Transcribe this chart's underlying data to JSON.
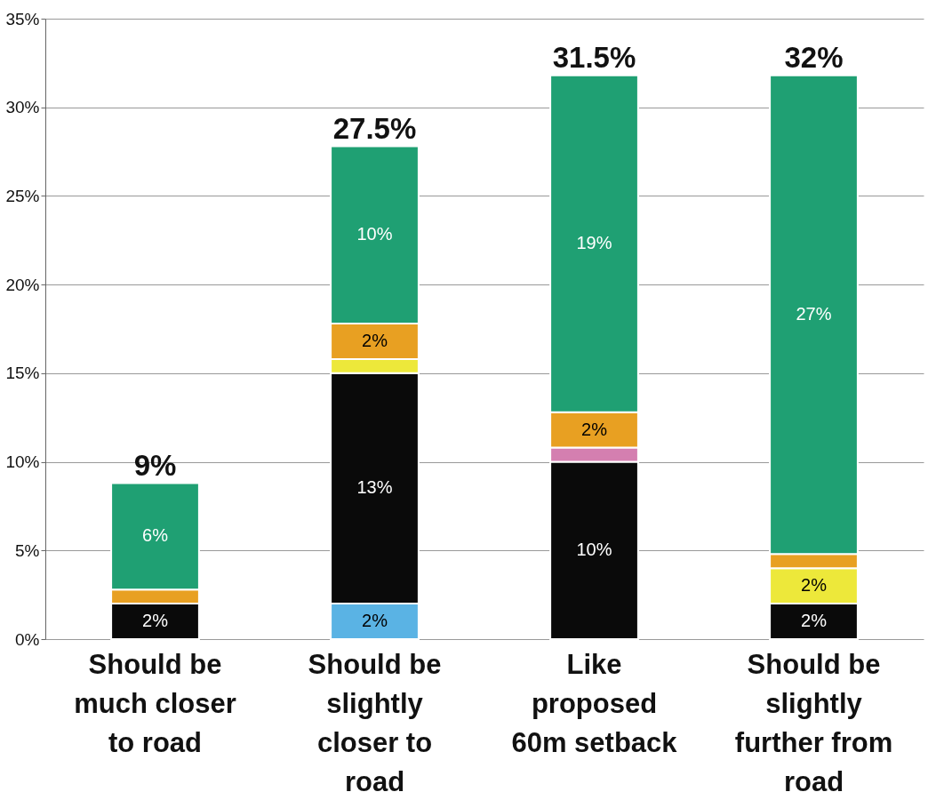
{
  "chart_data": {
    "type": "bar",
    "stacked": true,
    "categories": [
      "Should be much closer to road",
      "Should be slightly closer to road",
      "Like proposed 60m setback",
      "Should be slightly further from road"
    ],
    "series": [
      {
        "color": "#5ab3e4",
        "values": [
          null,
          2,
          null,
          null
        ],
        "value_labels": [
          null,
          "2%",
          null,
          null
        ]
      },
      {
        "color": "#0a0a0a",
        "values": [
          2,
          13,
          10,
          2
        ],
        "value_labels": [
          "2%",
          "13%",
          "10%",
          "2%"
        ]
      },
      {
        "color": "#ede83a",
        "values": [
          null,
          0.8,
          null,
          2
        ],
        "value_labels": [
          null,
          null,
          null,
          "2%"
        ]
      },
      {
        "color": "#d47fb0",
        "values": [
          null,
          null,
          0.8,
          null
        ],
        "value_labels": [
          null,
          null,
          null,
          null
        ]
      },
      {
        "color": "#e8a022",
        "values": [
          0.8,
          2,
          2,
          0.8
        ],
        "value_labels": [
          null,
          "2%",
          "2%",
          null
        ]
      },
      {
        "color": "#1fa073",
        "values": [
          6,
          10,
          19,
          27
        ],
        "value_labels": [
          "6%",
          "10%",
          "19%",
          "27%"
        ]
      }
    ],
    "totals": [
      "9%",
      "27.5%",
      "31.5%",
      "32%"
    ],
    "ylim": [
      0,
      35
    ],
    "yticks": [
      {
        "value": 0,
        "label": "0%"
      },
      {
        "value": 5,
        "label": "5%"
      },
      {
        "value": 10,
        "label": "10%"
      },
      {
        "value": 15,
        "label": "15%"
      },
      {
        "value": 20,
        "label": "20%"
      },
      {
        "value": 25,
        "label": "25%"
      },
      {
        "value": 30,
        "label": "30%"
      },
      {
        "value": 35,
        "label": "35%"
      }
    ],
    "grid": "y",
    "legend": false
  }
}
